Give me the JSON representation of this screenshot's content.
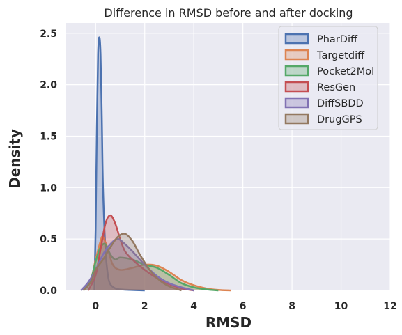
{
  "chart_data": {
    "type": "area",
    "title": "Difference in RMSD before and after docking",
    "xlabel": "RMSD",
    "ylabel": "Density",
    "xlim": [
      -1.2,
      12
    ],
    "ylim": [
      0,
      2.6
    ],
    "xticks": [
      0,
      2,
      4,
      6,
      8,
      10,
      12
    ],
    "yticks": [
      0.0,
      0.5,
      1.0,
      1.5,
      2.0,
      2.5
    ],
    "xtick_labels": [
      "0",
      "2",
      "4",
      "6",
      "8",
      "10",
      "12"
    ],
    "ytick_labels": [
      "0.0",
      "0.5",
      "1.0",
      "1.5",
      "2.0",
      "2.5"
    ],
    "grid": true,
    "background": "#eaeaf2",
    "legend_position": "top-right",
    "series": [
      {
        "name": "PharDiff",
        "color": "#4c72b0",
        "x": [
          -0.05,
          0.0,
          0.05,
          0.1,
          0.15,
          0.2,
          0.25,
          0.3,
          0.4,
          0.5,
          0.6,
          0.8,
          1.0,
          1.4,
          2.0
        ],
        "y": [
          0.0,
          0.6,
          1.6,
          2.3,
          2.46,
          2.3,
          1.7,
          1.0,
          0.4,
          0.15,
          0.06,
          0.02,
          0.01,
          0.005,
          0.0
        ]
      },
      {
        "name": "Targetdiff",
        "color": "#dd8452",
        "x": [
          -0.5,
          -0.2,
          0.0,
          0.2,
          0.3,
          0.5,
          0.7,
          1.0,
          1.5,
          2.0,
          2.5,
          3.0,
          3.5,
          4.0,
          4.5,
          5.0,
          5.5
        ],
        "y": [
          0.0,
          0.1,
          0.3,
          0.48,
          0.52,
          0.4,
          0.25,
          0.2,
          0.22,
          0.25,
          0.24,
          0.18,
          0.1,
          0.05,
          0.02,
          0.005,
          0.0
        ]
      },
      {
        "name": "Pocket2Mol",
        "color": "#55a868",
        "x": [
          -0.5,
          -0.2,
          0.0,
          0.2,
          0.4,
          0.6,
          0.8,
          1.0,
          1.5,
          2.0,
          2.5,
          3.0,
          3.5,
          4.0,
          4.5,
          5.0
        ],
        "y": [
          0.0,
          0.1,
          0.28,
          0.42,
          0.45,
          0.35,
          0.3,
          0.32,
          0.3,
          0.25,
          0.22,
          0.15,
          0.07,
          0.03,
          0.01,
          0.0
        ]
      },
      {
        "name": "ResGen",
        "color": "#c44e52",
        "x": [
          -0.3,
          0.0,
          0.2,
          0.4,
          0.6,
          0.8,
          1.0,
          1.2,
          1.5,
          2.0,
          2.5,
          3.0,
          3.5,
          4.0
        ],
        "y": [
          0.0,
          0.15,
          0.4,
          0.65,
          0.73,
          0.65,
          0.5,
          0.38,
          0.3,
          0.2,
          0.12,
          0.06,
          0.02,
          0.0
        ]
      },
      {
        "name": "DiffSBDD",
        "color": "#8172b3",
        "x": [
          -0.6,
          -0.3,
          0.0,
          0.3,
          0.6,
          0.9,
          1.2,
          1.5,
          2.0,
          2.5,
          3.0,
          3.5,
          4.0
        ],
        "y": [
          0.0,
          0.08,
          0.2,
          0.35,
          0.45,
          0.5,
          0.45,
          0.38,
          0.25,
          0.14,
          0.07,
          0.03,
          0.0
        ]
      },
      {
        "name": "DrugGPS",
        "color": "#937860",
        "x": [
          -0.5,
          -0.2,
          0.0,
          0.3,
          0.6,
          0.9,
          1.2,
          1.5,
          1.8,
          2.2,
          2.6,
          3.0,
          3.5
        ],
        "y": [
          0.0,
          0.08,
          0.2,
          0.3,
          0.42,
          0.52,
          0.55,
          0.48,
          0.35,
          0.2,
          0.1,
          0.04,
          0.0
        ]
      }
    ]
  }
}
